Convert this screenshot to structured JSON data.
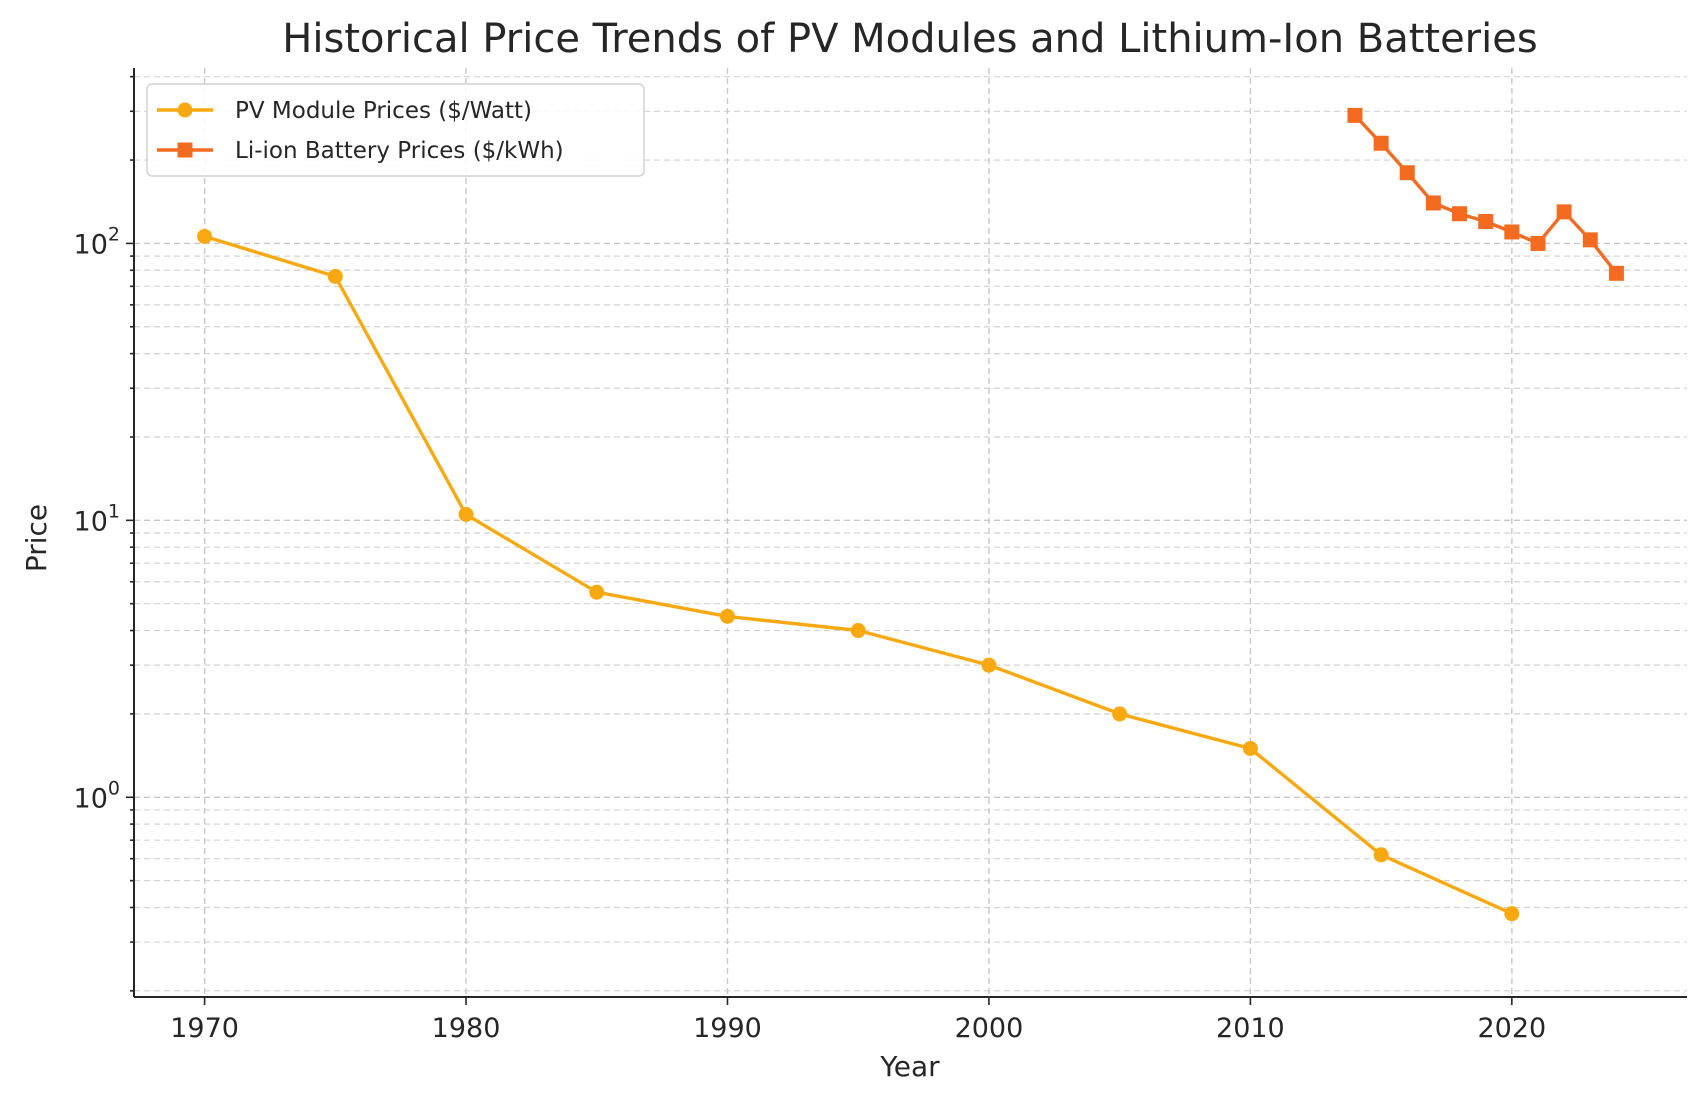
{
  "chart_data": {
    "type": "line",
    "title": "Historical Price Trends of PV Modules and Lithium-Ion Batteries",
    "xlabel": "Year",
    "ylabel": "Price",
    "yscale": "log",
    "xlim": [
      1967.3,
      2026.7
    ],
    "ylim": [
      0.19,
      430
    ],
    "xticks": [
      1970,
      1980,
      1990,
      2000,
      2010,
      2020
    ],
    "yticks": [
      1,
      10,
      100
    ],
    "grid": true,
    "legend_position": "top-left",
    "series": [
      {
        "name": "PV Module Prices ($/Watt)",
        "color": "#f8a912",
        "marker": "circle",
        "x": [
          1970,
          1975,
          1980,
          1985,
          1990,
          1995,
          2000,
          2005,
          2010,
          2015,
          2020
        ],
        "y": [
          106,
          76,
          10.5,
          5.5,
          4.5,
          4,
          3,
          2,
          1.5,
          0.62,
          0.38
        ]
      },
      {
        "name": "Li-ion Battery Prices ($/kWh)",
        "color": "#f26b21",
        "marker": "square",
        "x": [
          2014,
          2015,
          2016,
          2017,
          2018,
          2019,
          2020,
          2021,
          2022,
          2023,
          2024
        ],
        "y": [
          290,
          230,
          180,
          140,
          128,
          120,
          110,
          100,
          130,
          103,
          78
        ]
      }
    ]
  }
}
